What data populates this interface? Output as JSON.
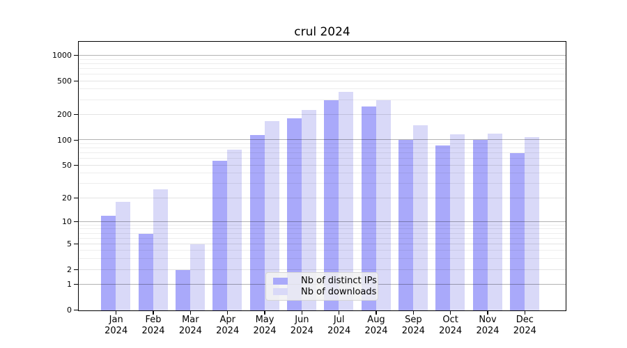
{
  "title": "crul 2024",
  "chart_data": {
    "type": "bar",
    "title": "crul 2024",
    "categories": [
      "Jan",
      "Feb",
      "Mar",
      "Apr",
      "May",
      "Jun",
      "Jul",
      "Aug",
      "Sep",
      "Oct",
      "Nov",
      "Dec"
    ],
    "year_label": "2024",
    "series": [
      {
        "name": "Nb of distinct IPs",
        "color": "#a9a9fa",
        "values": [
          12,
          7,
          2,
          57,
          116,
          183,
          300,
          253,
          102,
          87,
          101,
          70
        ]
      },
      {
        "name": "Nb of downloads",
        "color": "#d9d9f8",
        "values": [
          18,
          26,
          5,
          77,
          168,
          231,
          376,
          301,
          150,
          119,
          120,
          109
        ]
      }
    ],
    "y_ticks": [
      0,
      1,
      2,
      5,
      10,
      20,
      50,
      100,
      200,
      500,
      1000
    ],
    "y_scale": "log10(1+x)",
    "ylim": [
      0,
      1470
    ],
    "grid": "horizontal",
    "legend_position": "lower center",
    "colors": {
      "axis": "#000000",
      "major_grid": "rgba(0,0,0,0.30)",
      "mid_grid": "rgba(0,0,0,0.11)",
      "minor_grid": "rgba(0,0,0,0.07)"
    }
  }
}
